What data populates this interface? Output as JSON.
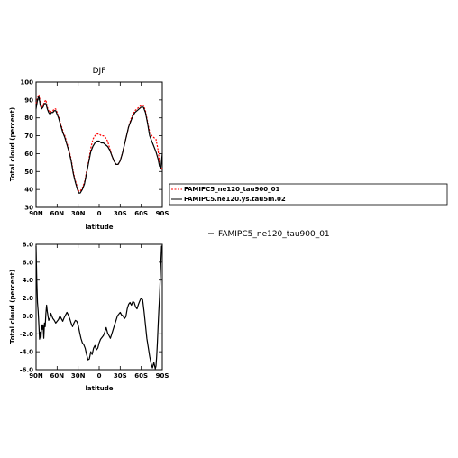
{
  "chart_data": [
    {
      "type": "line",
      "title": "DJF",
      "xlabel": "latitude",
      "ylabel": "Total cloud (percent)",
      "x_ticks": [
        "90N",
        "60N",
        "30N",
        "0",
        "30S",
        "60S",
        "90S"
      ],
      "x_tick_values": [
        90,
        60,
        30,
        0,
        -30,
        -60,
        -90
      ],
      "xlim": [
        90,
        -90
      ],
      "ylim": [
        30,
        100
      ],
      "y_ticks": [
        30,
        40,
        50,
        60,
        70,
        80,
        90,
        100
      ],
      "y_tick_labels": [
        "30",
        "40",
        "50",
        "60",
        "70",
        "80",
        "90",
        "100"
      ],
      "legend_position": "right",
      "series": [
        {
          "name": "FAMIPC5_ne120_tau900_01",
          "color": "#ff0000",
          "dashed": true,
          "x": [
            90,
            88,
            86,
            84,
            82,
            80,
            78,
            76,
            74,
            72,
            70,
            68,
            66,
            64,
            62,
            60,
            58,
            55,
            52,
            49,
            46,
            43,
            40,
            37,
            34,
            31,
            29,
            27,
            24,
            21,
            18,
            15,
            12,
            9,
            6,
            3,
            0,
            -3,
            -6,
            -9,
            -12,
            -15,
            -18,
            -21,
            -24,
            -27,
            -30,
            -33,
            -36,
            -39,
            -42,
            -45,
            -48,
            -51,
            -54,
            -57,
            -60,
            -63,
            -66,
            -69,
            -72,
            -75,
            -78,
            -81,
            -84,
            -86,
            -88,
            -90
          ],
          "y": [
            88,
            91,
            93,
            89,
            86,
            87,
            89,
            90,
            86,
            84,
            83,
            84,
            84,
            85,
            85,
            83,
            81,
            77,
            73,
            70,
            66,
            62,
            57,
            50,
            45,
            41,
            39,
            39,
            41,
            44,
            50,
            56,
            63,
            68,
            70,
            71,
            71,
            70,
            70,
            69,
            67,
            63,
            59,
            56,
            54,
            54,
            56,
            60,
            65,
            70,
            75,
            79,
            82,
            84,
            85,
            86,
            87,
            87,
            84,
            78,
            72,
            70,
            69,
            68,
            62,
            55,
            51,
            52
          ]
        },
        {
          "name": "FAMIPC5.ne120.ys.tau5m.02",
          "color": "#000000",
          "dashed": false,
          "x": [
            90,
            88,
            86,
            84,
            82,
            80,
            78,
            76,
            74,
            72,
            70,
            68,
            66,
            64,
            62,
            60,
            58,
            55,
            52,
            49,
            46,
            43,
            40,
            37,
            34,
            31,
            29,
            27,
            24,
            21,
            18,
            15,
            12,
            9,
            6,
            3,
            0,
            -3,
            -6,
            -9,
            -12,
            -15,
            -18,
            -21,
            -24,
            -27,
            -30,
            -33,
            -36,
            -39,
            -42,
            -45,
            -48,
            -51,
            -54,
            -57,
            -60,
            -63,
            -66,
            -69,
            -72,
            -75,
            -78,
            -81,
            -84,
            -86,
            -88,
            -90
          ],
          "y": [
            85,
            90,
            92,
            87,
            85,
            86,
            88,
            88,
            85,
            83,
            82,
            83,
            83,
            84,
            84,
            82,
            80,
            76,
            72,
            69,
            65,
            61,
            56,
            49,
            44,
            40,
            38,
            38,
            40,
            43,
            49,
            55,
            61,
            64,
            66,
            67,
            67,
            66,
            66,
            65,
            64,
            62,
            59,
            56,
            54,
            54,
            56,
            60,
            65,
            70,
            75,
            78,
            81,
            83,
            84,
            85,
            86,
            86,
            83,
            77,
            70,
            67,
            64,
            61,
            57,
            53,
            52,
            60
          ]
        }
      ]
    },
    {
      "type": "line",
      "title": "",
      "xlabel": "latitude",
      "ylabel": "Total cloud (percent)",
      "x_ticks": [
        "90N",
        "60N",
        "30N",
        "0",
        "30S",
        "60S",
        "90S"
      ],
      "x_tick_values": [
        90,
        60,
        30,
        0,
        -30,
        -60,
        -90
      ],
      "xlim": [
        90,
        -90
      ],
      "ylim": [
        -6,
        8
      ],
      "y_ticks": [
        -6,
        -4,
        -2,
        0,
        2,
        4,
        6,
        8
      ],
      "y_tick_labels": [
        "-6.0",
        "-4.0",
        "-2.0",
        "0.0",
        "2.0",
        "4.0",
        "6.0",
        "8.0"
      ],
      "legend_position": "right",
      "series": [
        {
          "name": "FAMIPC5_ne120_tau900_01",
          "color": "#000000",
          "dashed": false,
          "x": [
            90,
            89,
            88,
            87,
            86,
            85,
            84,
            83,
            82,
            81,
            80,
            79,
            78,
            77,
            76,
            75,
            74,
            72,
            70,
            69,
            68,
            66,
            64,
            62,
            60,
            58,
            56,
            54,
            52,
            50,
            48,
            46,
            44,
            42,
            40,
            38,
            36,
            34,
            32,
            30,
            28,
            26,
            24,
            22,
            20,
            18,
            16,
            14,
            12,
            10,
            8,
            6,
            4,
            2,
            0,
            -2,
            -4,
            -6,
            -8,
            -10,
            -12,
            -14,
            -16,
            -18,
            -20,
            -22,
            -24,
            -26,
            -28,
            -30,
            -32,
            -34,
            -36,
            -38,
            -40,
            -42,
            -44,
            -46,
            -48,
            -50,
            -52,
            -54,
            -56,
            -58,
            -60,
            -62,
            -64,
            -66,
            -68,
            -70,
            -72,
            -74,
            -76,
            -78,
            -80,
            -81,
            -82,
            -83,
            -84,
            -85,
            -86,
            -87,
            -88,
            -89,
            -90
          ],
          "x_note": "",
          "y": [
            7.8,
            4.0,
            1.5,
            0.5,
            -1.0,
            -2.6,
            -1.8,
            -2.5,
            -1.0,
            -1.5,
            -1.0,
            -2.5,
            -0.8,
            -1.2,
            0.3,
            1.2,
            0.5,
            -0.5,
            -0.2,
            0.3,
            0.1,
            -0.3,
            -0.5,
            -0.8,
            -0.6,
            -0.4,
            0.0,
            -0.3,
            -0.6,
            -0.2,
            0.1,
            0.4,
            0.1,
            -0.3,
            -0.8,
            -1.2,
            -0.8,
            -0.5,
            -0.6,
            -1.0,
            -1.8,
            -2.5,
            -3.0,
            -3.2,
            -3.6,
            -4.3,
            -4.9,
            -4.8,
            -4.0,
            -4.3,
            -3.6,
            -3.3,
            -3.8,
            -3.6,
            -3.0,
            -2.6,
            -2.4,
            -2.2,
            -1.8,
            -1.3,
            -1.9,
            -2.2,
            -2.5,
            -2.0,
            -1.5,
            -1.0,
            -0.5,
            0.0,
            0.2,
            0.4,
            0.1,
            0.0,
            -0.3,
            -0.1,
            0.8,
            1.3,
            1.5,
            1.2,
            1.6,
            1.5,
            1.0,
            0.8,
            1.3,
            1.7,
            2.0,
            1.8,
            0.5,
            -1.0,
            -2.5,
            -3.5,
            -4.5,
            -5.3,
            -5.8,
            -5.2,
            -5.9,
            -5.6,
            -4.5,
            -3.0,
            -1.2,
            0.5,
            2.0,
            4.0,
            6.0,
            7.8,
            7.8
          ]
        }
      ]
    }
  ],
  "legend": {
    "top_entries": [
      "FAMIPC5_ne120_tau900_01",
      "FAMIPC5.ne120.ys.tau5m.02"
    ],
    "bottom_entry": "FAMIPC5_ne120_tau900_01"
  }
}
